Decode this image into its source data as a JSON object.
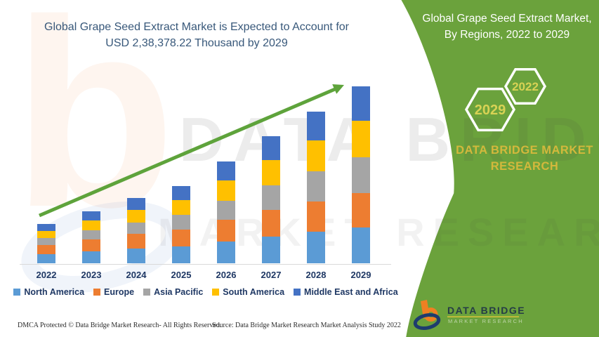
{
  "title": {
    "line1": "Global Grape Seed Extract Market is Expected to Account for",
    "line2": "USD 2,38,378.22 Thousand by 2029"
  },
  "side_panel": {
    "header_line1": "Global Grape Seed Extract Market,",
    "header_line2": "By Regions, 2022 to 2029",
    "hexagon_front_year": "2029",
    "hexagon_back_year": "2022",
    "brand_line1": "DATA BRIDGE MARKET",
    "brand_line2": "RESEARCH"
  },
  "watermarks": {
    "letter": "b",
    "big_text_1": "DATA BRIDGE",
    "big_text_2": "MARKET RESEARCH"
  },
  "footer": {
    "dmca": "DMCA Protected © Data Bridge Market Research- All Rights Reserved.",
    "source": "Source: Data Bridge Market Research Market Analysis Study 2022"
  },
  "logo": {
    "name": "DATA BRIDGE",
    "subtext": "MARKET RESEARCH"
  },
  "colors": {
    "green_panel": "#6ba23c",
    "trend_arrow": "#5ea33b",
    "title_text": "#38587a",
    "axis_legend_text": "#1f3864",
    "hex_year_text": "#d8d254",
    "brand_gold": "#d3b83c",
    "logo_orange": "#ef8022",
    "logo_navy": "#1e3c6e",
    "logo_underline_yellow": "#d8c23a"
  },
  "chart_data": {
    "type": "bar",
    "stacked": true,
    "title": "Global Grape Seed Extract Market is Expected to Account for USD 2,38,378.22 Thousand by 2029",
    "unit": "USD Thousand",
    "categories": [
      "2022",
      "2023",
      "2024",
      "2025",
      "2026",
      "2027",
      "2028",
      "2029"
    ],
    "series": [
      {
        "name": "North America",
        "color": "#5B9BD5",
        "values": [
          12450,
          16120,
          19800,
          23020,
          29720,
          36310,
          42410,
          48390
        ]
      },
      {
        "name": "Europe",
        "color": "#ED7D31",
        "values": [
          12440,
          16050,
          19600,
          22670,
          29100,
          35330,
          41000,
          46480
        ]
      },
      {
        "name": "Asia Pacific",
        "color": "#A5A5A5",
        "values": [
          9110,
          12330,
          15810,
          19180,
          25870,
          32990,
          40230,
          47910
        ]
      },
      {
        "name": "South America",
        "color": "#FFC000",
        "values": [
          9800,
          13170,
          16770,
          20230,
          27100,
          34360,
          41660,
          49340
        ]
      },
      {
        "name": "Middle East and Africa",
        "color": "#4472C4",
        "values": [
          9160,
          12260,
          15630,
          18870,
          25320,
          32130,
          39000,
          46258.22
        ]
      }
    ],
    "totals": [
      52960,
      69930,
      87610,
      103970,
      137110,
      171120,
      204300,
      238378.22
    ],
    "ylim": [
      0,
      238378.22
    ],
    "y_axis_shown": false,
    "gridlines": false,
    "legend_position": "bottom",
    "annotation": "upward trend arrow from 2022 toward 2029"
  }
}
